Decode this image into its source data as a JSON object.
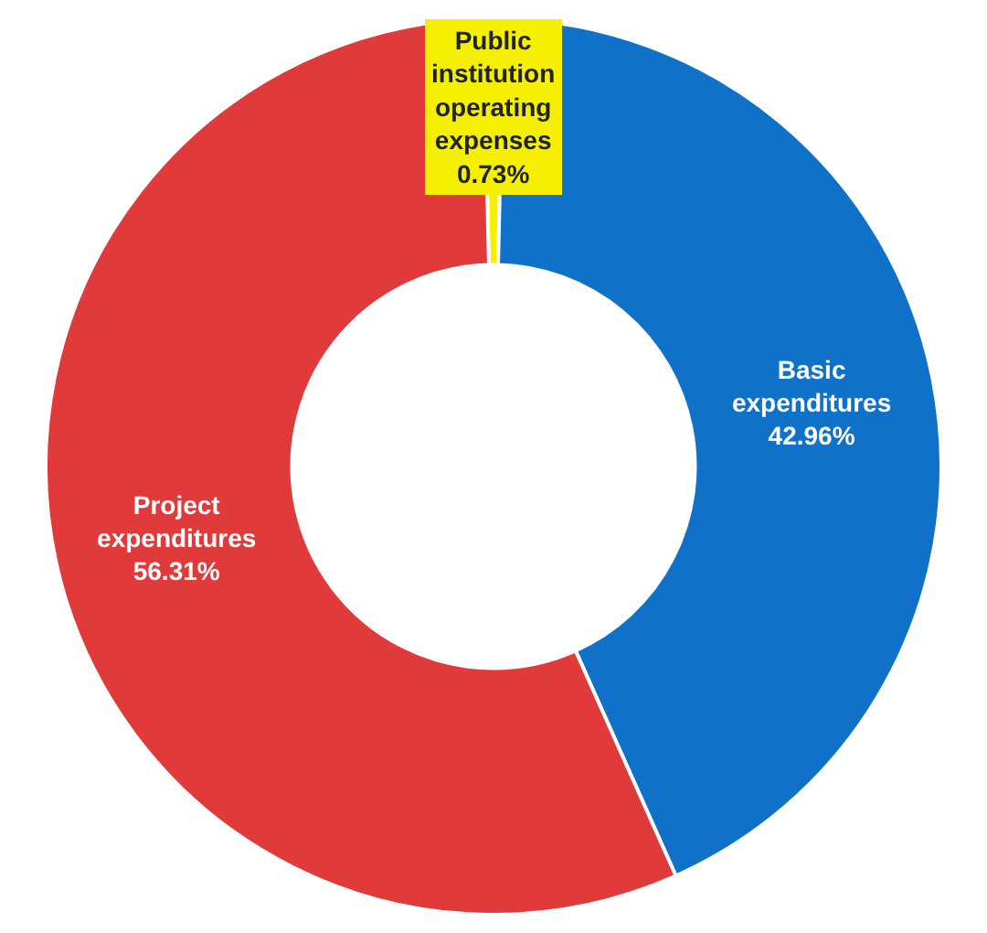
{
  "chart_data": {
    "type": "donut",
    "categories": [
      "Public institution operating expenses",
      "Basic expenditures",
      "Project expenditures"
    ],
    "values": [
      0.73,
      42.96,
      56.31
    ],
    "value_labels": [
      "0.73%",
      "42.96%",
      "56.31%"
    ],
    "colors": [
      "#f5f000",
      "#0f72c8",
      "#e03a3a"
    ],
    "legend": false
  }
}
